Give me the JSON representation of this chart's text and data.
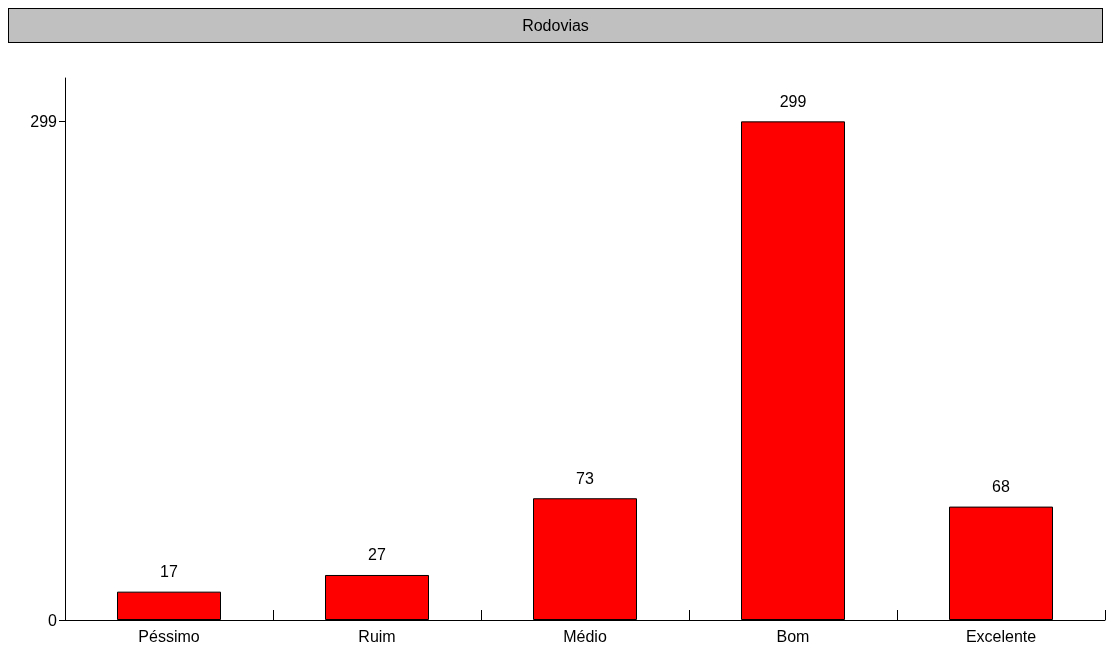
{
  "chart_data": {
    "type": "bar",
    "title": "Rodovias",
    "categories": [
      "Péssimo",
      "Ruim",
      "Médio",
      "Bom",
      "Excelente"
    ],
    "values": [
      17,
      27,
      73,
      299,
      68
    ],
    "color": "#ff0000",
    "ylim": [
      0,
      325
    ],
    "yticks": [
      0,
      299
    ],
    "data_labels": true,
    "grid": false
  }
}
